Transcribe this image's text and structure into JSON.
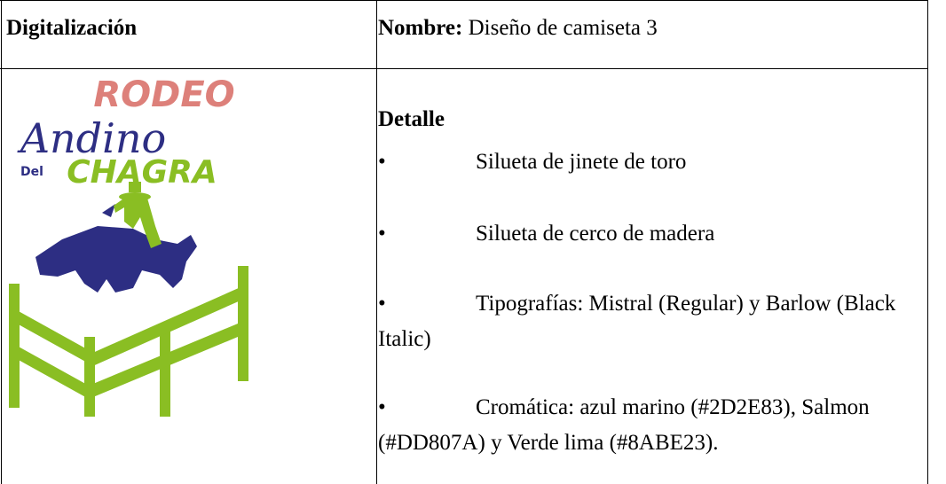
{
  "header": {
    "left": "Digitalización",
    "right_label": "Nombre:",
    "right_text": "Diseño de camiseta 3"
  },
  "logo": {
    "line1": "RODEO",
    "line2": "Andino",
    "prefix": "Del",
    "line3": "CHAGRA"
  },
  "detail": {
    "title": "Detalle",
    "items": [
      "Silueta de jinete de toro",
      "Silueta de cerco de madera",
      "Tipografías: Mistral (Regular) y Barlow (Black Italic)",
      "Cromática: azul marino (#2D2E83), Salmon (#DD807A) y Verde lima (#8ABE23)."
    ]
  }
}
